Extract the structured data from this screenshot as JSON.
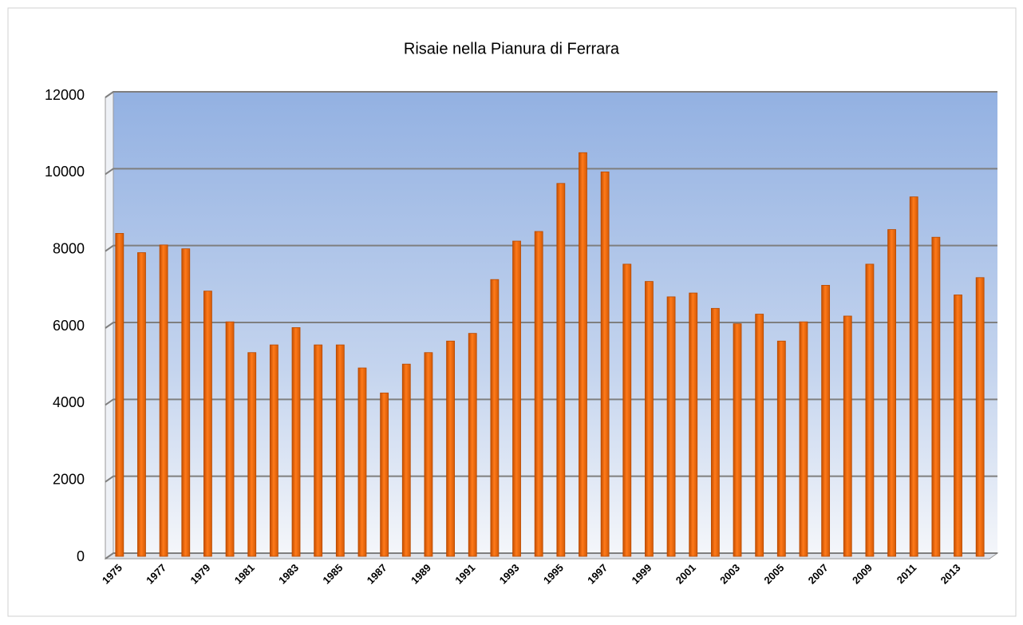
{
  "chart_data": {
    "type": "bar",
    "title": "Risaie nella Pianura di Ferrara",
    "categories": [
      "1975",
      null,
      "1977",
      null,
      "1979",
      null,
      "1981",
      null,
      "1983",
      null,
      "1985",
      null,
      "1987",
      null,
      "1989",
      null,
      "1991",
      null,
      "1993",
      null,
      "1995",
      null,
      "1997",
      null,
      "1999",
      null,
      "2001",
      null,
      "2003",
      null,
      "2005",
      null,
      "2007",
      null,
      "2009",
      null,
      "2011",
      null,
      "2013",
      null
    ],
    "values": [
      8400,
      7900,
      8100,
      8000,
      6900,
      6100,
      5300,
      5500,
      5950,
      5500,
      5500,
      4900,
      4250,
      5000,
      5300,
      5600,
      5800,
      7200,
      8200,
      8450,
      9700,
      10500,
      10000,
      7600,
      7150,
      6750,
      6850,
      6450,
      6050,
      6300,
      5600,
      6100,
      7050,
      6250,
      7600,
      8500,
      9350,
      8300,
      6800,
      7250
    ],
    "color": "#f26b0f",
    "ylim": [
      0,
      12000
    ],
    "yticks": [
      0,
      2000,
      4000,
      6000,
      8000,
      10000,
      12000
    ],
    "grid": true
  }
}
